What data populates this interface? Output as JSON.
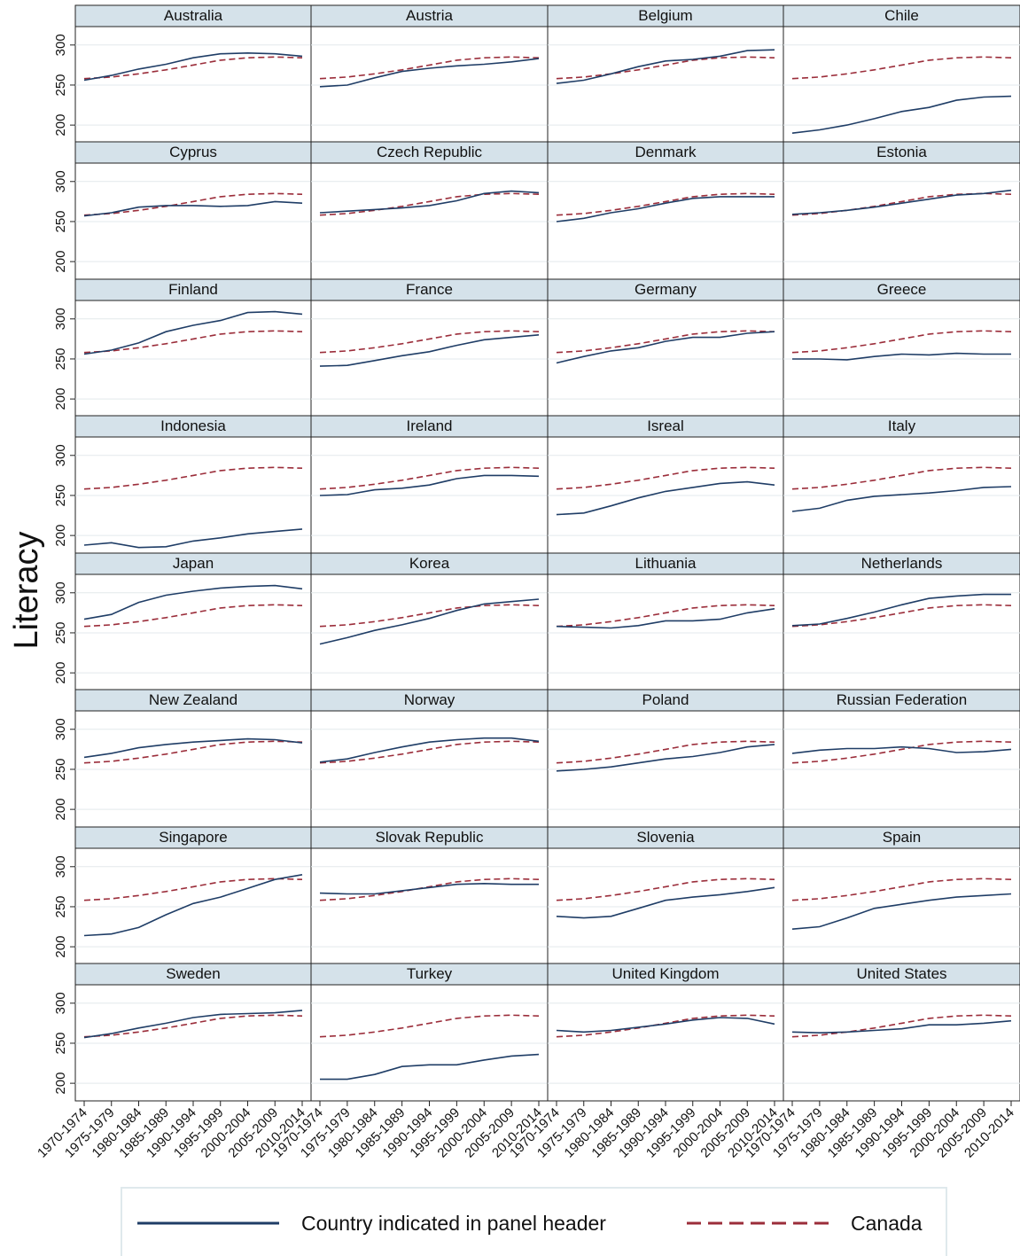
{
  "chart_data": {
    "type": "line",
    "layout": "small-multiples",
    "ylabel": "Literacy",
    "xlabel": "",
    "x": [
      "1970-1974",
      "1975-1979",
      "1980-1984",
      "1985-1989",
      "1990-1994",
      "1995-1999",
      "2000-2004",
      "2005-2009",
      "2010-2014"
    ],
    "y_ticks": [
      200,
      250,
      300
    ],
    "ylim": [
      178,
      323
    ],
    "grid": true,
    "legend_position": "bottom",
    "legend": {
      "country_label": "Country indicated in panel header",
      "reference_label": "Canada"
    },
    "colors": {
      "country": "#1f3d66",
      "reference": "#9b2d3a",
      "strip": "#d5e2ea"
    },
    "reference_series": {
      "name": "Canada",
      "values": [
        258,
        260,
        264,
        269,
        275,
        281,
        284,
        285,
        284
      ]
    },
    "panels": [
      {
        "name": "Australia",
        "values": [
          256,
          262,
          270,
          276,
          284,
          289,
          290,
          289,
          286
        ]
      },
      {
        "name": "Austria",
        "values": [
          248,
          250,
          259,
          267,
          271,
          274,
          276,
          279,
          283
        ]
      },
      {
        "name": "Belgium",
        "values": [
          252,
          256,
          264,
          273,
          280,
          282,
          286,
          293,
          294
        ]
      },
      {
        "name": "Chile",
        "values": [
          190,
          194,
          200,
          208,
          217,
          222,
          231,
          235,
          236
        ]
      },
      {
        "name": "Cyprus",
        "values": [
          257,
          261,
          268,
          270,
          270,
          269,
          270,
          275,
          273
        ]
      },
      {
        "name": "Czech Republic",
        "values": [
          261,
          263,
          265,
          267,
          270,
          276,
          285,
          288,
          286
        ]
      },
      {
        "name": "Denmark",
        "values": [
          250,
          254,
          261,
          266,
          273,
          279,
          281,
          281,
          281
        ]
      },
      {
        "name": "Estonia",
        "values": [
          259,
          261,
          264,
          268,
          273,
          278,
          283,
          285,
          289
        ]
      },
      {
        "name": "Finland",
        "values": [
          256,
          261,
          270,
          284,
          292,
          298,
          308,
          309,
          306
        ]
      },
      {
        "name": "France",
        "values": [
          241,
          242,
          248,
          254,
          259,
          267,
          274,
          277,
          280
        ]
      },
      {
        "name": "Germany",
        "values": [
          245,
          253,
          260,
          264,
          272,
          277,
          277,
          282,
          284
        ]
      },
      {
        "name": "Greece",
        "values": [
          250,
          250,
          249,
          253,
          256,
          255,
          257,
          256,
          256
        ]
      },
      {
        "name": "Indonesia",
        "values": [
          188,
          191,
          185,
          186,
          193,
          197,
          202,
          205,
          208
        ]
      },
      {
        "name": "Ireland",
        "values": [
          250,
          251,
          257,
          259,
          263,
          271,
          275,
          275,
          274
        ]
      },
      {
        "name": "Isreal",
        "values": [
          226,
          228,
          237,
          247,
          255,
          260,
          265,
          267,
          263
        ]
      },
      {
        "name": "Italy",
        "values": [
          230,
          234,
          244,
          249,
          251,
          253,
          256,
          260,
          261
        ]
      },
      {
        "name": "Japan",
        "values": [
          267,
          273,
          288,
          297,
          302,
          306,
          308,
          309,
          305
        ]
      },
      {
        "name": "Korea",
        "values": [
          236,
          244,
          253,
          260,
          268,
          278,
          286,
          289,
          292
        ]
      },
      {
        "name": "Lithuania",
        "values": [
          258,
          257,
          256,
          259,
          265,
          265,
          267,
          275,
          280
        ]
      },
      {
        "name": "Netherlands",
        "values": [
          259,
          261,
          268,
          276,
          285,
          293,
          296,
          298,
          298
        ]
      },
      {
        "name": "New Zealand",
        "values": [
          265,
          270,
          277,
          281,
          284,
          286,
          288,
          287,
          283
        ]
      },
      {
        "name": "Norway",
        "values": [
          259,
          263,
          271,
          278,
          284,
          287,
          289,
          289,
          285
        ]
      },
      {
        "name": "Poland",
        "values": [
          248,
          250,
          253,
          258,
          263,
          266,
          271,
          278,
          281
        ]
      },
      {
        "name": "Russian Federation",
        "values": [
          270,
          274,
          276,
          276,
          278,
          276,
          271,
          272,
          275
        ]
      },
      {
        "name": "Singapore",
        "values": [
          214,
          216,
          224,
          240,
          254,
          262,
          273,
          284,
          290
        ]
      },
      {
        "name": "Slovak Republic",
        "values": [
          267,
          266,
          266,
          270,
          274,
          278,
          279,
          278,
          278
        ]
      },
      {
        "name": "Slovenia",
        "values": [
          238,
          236,
          238,
          248,
          258,
          262,
          265,
          269,
          274
        ]
      },
      {
        "name": "Spain",
        "values": [
          222,
          225,
          236,
          248,
          253,
          258,
          262,
          264,
          266
        ]
      },
      {
        "name": "Sweden",
        "values": [
          257,
          262,
          269,
          275,
          282,
          286,
          287,
          288,
          291
        ]
      },
      {
        "name": "Turkey",
        "values": [
          205,
          205,
          211,
          221,
          223,
          223,
          229,
          234,
          236
        ]
      },
      {
        "name": "United Kingdom",
        "values": [
          266,
          264,
          266,
          270,
          274,
          279,
          282,
          281,
          274
        ]
      },
      {
        "name": "United States",
        "values": [
          264,
          263,
          264,
          266,
          268,
          273,
          273,
          275,
          278
        ]
      }
    ]
  }
}
